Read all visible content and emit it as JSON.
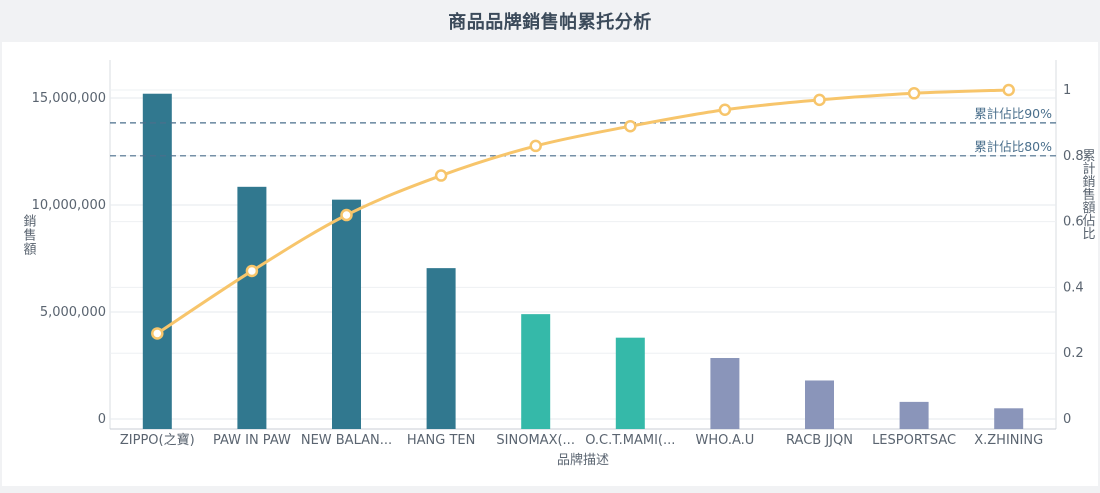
{
  "title": "商品品牌銷售帕累托分析",
  "chart_data": {
    "type": "bar",
    "categories": [
      "ZIPPO(之寶)",
      "PAW IN PAW",
      "NEW BALAN...",
      "HANG TEN",
      "SINOMAX(...",
      "O.C.T.MAMI(...",
      "WHO.A.U",
      "RACB JJQN",
      "LESPORTSAC",
      "X.ZHINING"
    ],
    "series": [
      {
        "type": "bar",
        "values": [
          15200000,
          10850000,
          10250000,
          7050000,
          4900000,
          3800000,
          2850000,
          1800000,
          800000,
          500000
        ],
        "colors": [
          "#31788f",
          "#31788f",
          "#31788f",
          "#31788f",
          "#35b9a9",
          "#35b9a9",
          "#8a95ba",
          "#8a95ba",
          "#8a95ba",
          "#8a95ba"
        ]
      },
      {
        "type": "line",
        "axis": "right",
        "values": [
          0.26,
          0.45,
          0.62,
          0.74,
          0.83,
          0.89,
          0.94,
          0.97,
          0.99,
          1.0
        ],
        "color": "#f7c56b"
      }
    ],
    "xlabel": "品牌描述",
    "ylabel": "銷售額",
    "ylabel_right": "累計銷售額佔比",
    "yticks": [
      "0",
      "5,000,000",
      "10,000,000",
      "15,000,000"
    ],
    "ytick_values": [
      0,
      5000000,
      10000000,
      15000000
    ],
    "y2ticks": [
      "0",
      "0.2",
      "0.4",
      "0.6",
      "0.8",
      "1"
    ],
    "y2tick_values": [
      0,
      0.2,
      0.4,
      0.6,
      0.8,
      1
    ],
    "ylim": [
      0,
      15000000
    ],
    "y2lim": [
      0,
      1
    ],
    "reference_lines": [
      {
        "label": "累計佔比90%",
        "value": 0.9
      },
      {
        "label": "累計佔比80%",
        "value": 0.8
      }
    ],
    "reference_color": "#4a6f8c",
    "grid": true,
    "legend": "none"
  }
}
